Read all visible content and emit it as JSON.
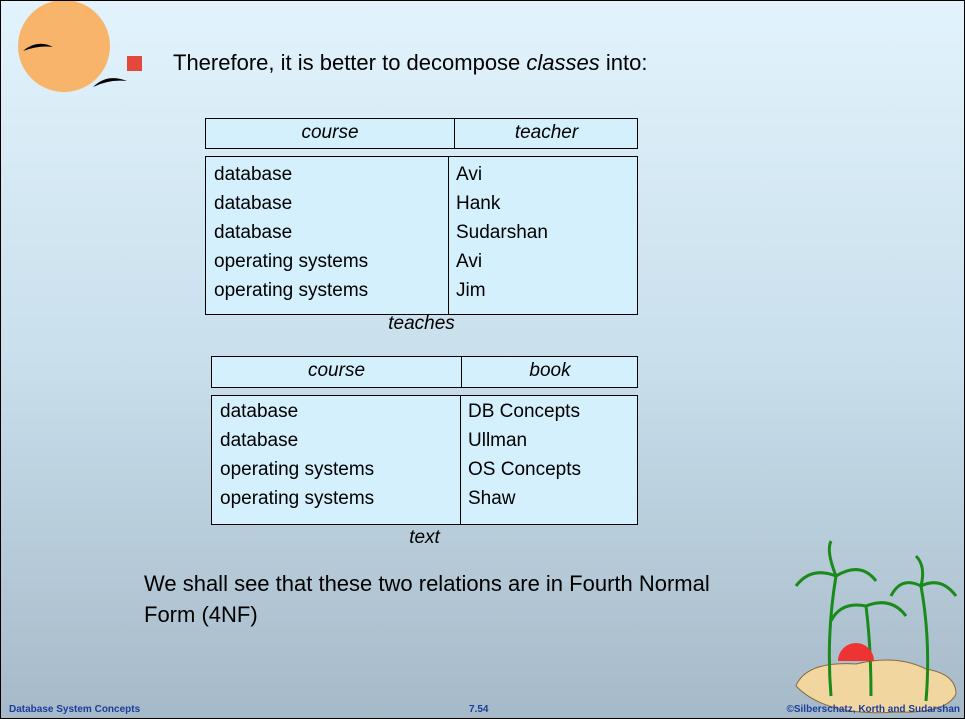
{
  "bullet": {
    "parts": [
      "Therefore, it is better to decompose ",
      "classes",
      " into:"
    ]
  },
  "tables": [
    {
      "headers": [
        "course",
        "teacher"
      ],
      "rows": [
        [
          "database",
          "Avi"
        ],
        [
          "database",
          "Hank"
        ],
        [
          "database",
          "Sudarshan"
        ],
        [
          "operating systems",
          "Avi"
        ],
        [
          "operating systems",
          "Jim"
        ]
      ],
      "caption": "teaches"
    },
    {
      "headers": [
        "course",
        "book"
      ],
      "rows": [
        [
          "database",
          "DB Concepts"
        ],
        [
          "database",
          "Ullman"
        ],
        [
          "operating systems",
          "OS Concepts"
        ],
        [
          "operating systems",
          "Shaw"
        ]
      ],
      "caption": "text"
    }
  ],
  "paragraph": {
    "lines": [
      "We shall see that these two relations are in Fourth Normal",
      "Form (4NF)"
    ]
  },
  "footer": {
    "left": "Database System Concepts",
    "center": "7.54",
    "right": "©Silberschatz, Korth and Sudarshan"
  }
}
